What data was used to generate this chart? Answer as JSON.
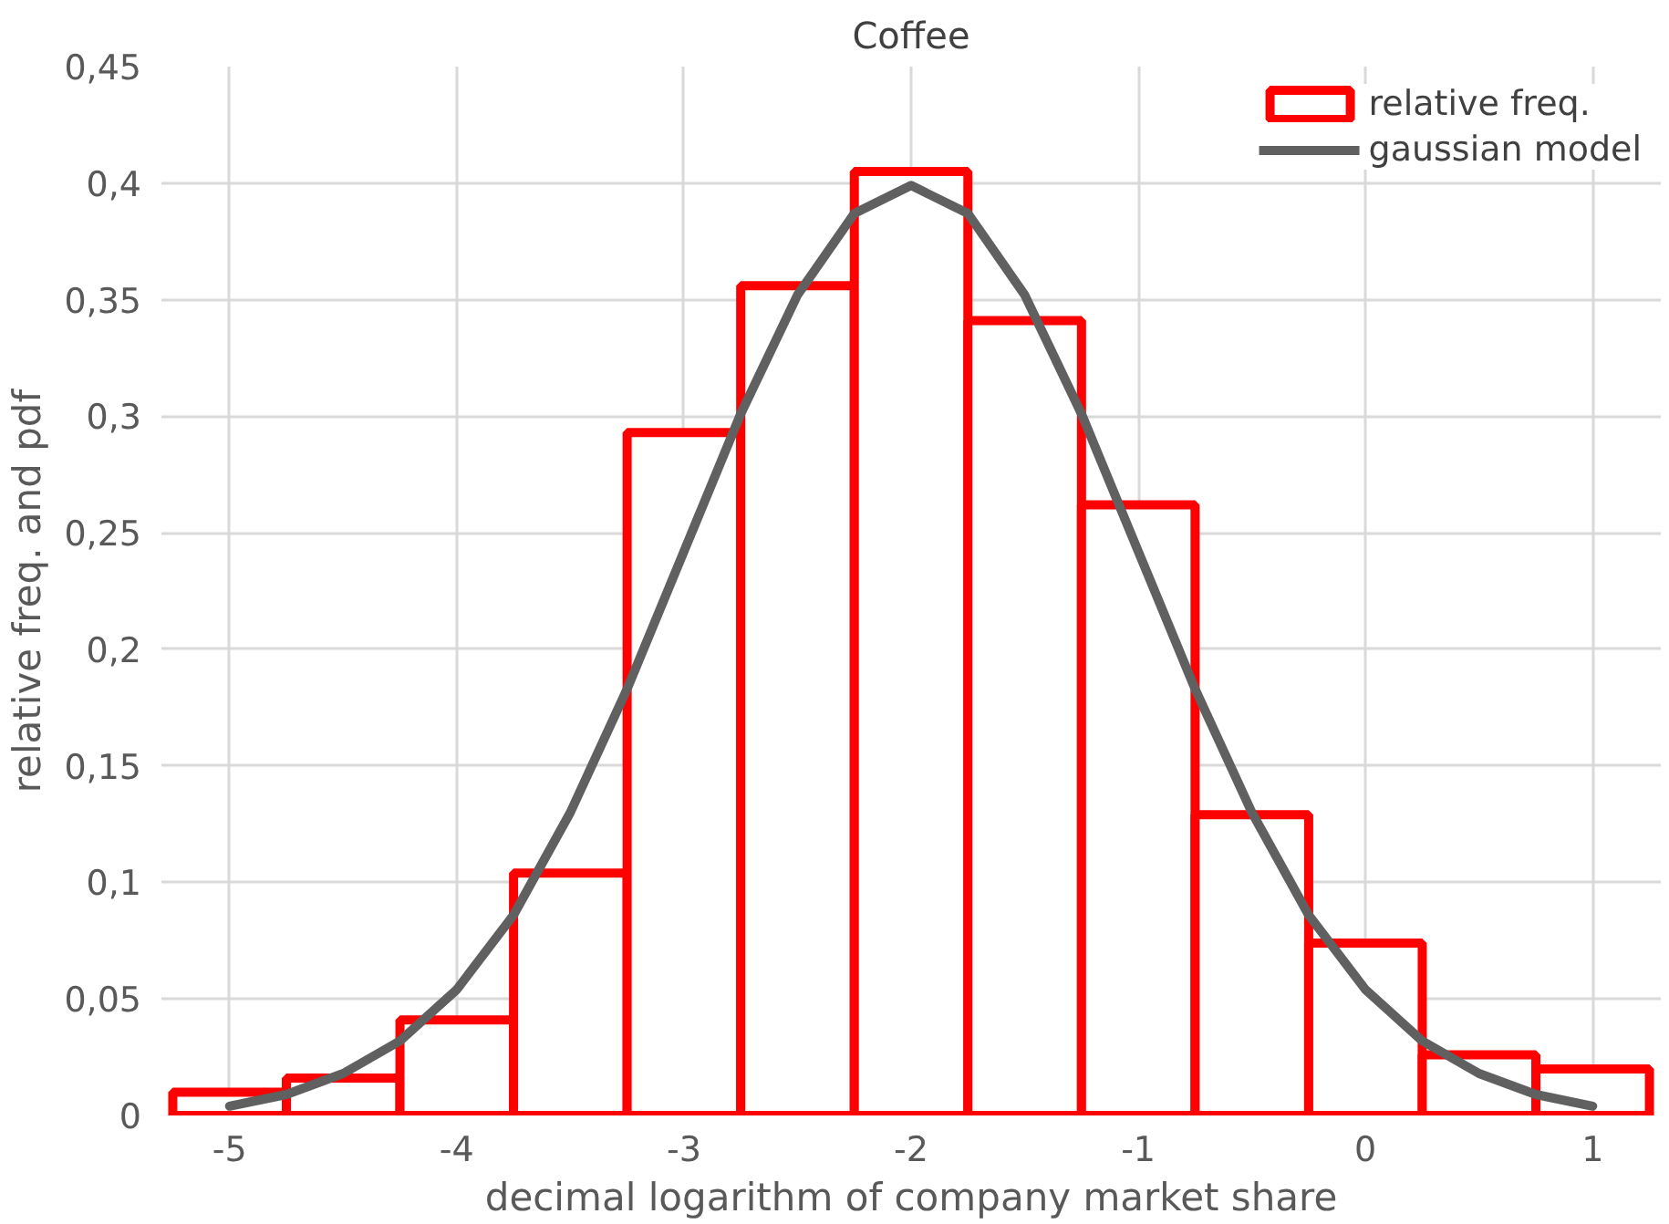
{
  "chart_data": {
    "type": "histogram",
    "title": "Coffee",
    "xlabel": "decimal logarithm of company market share",
    "ylabel": "relative freq. and pdf",
    "bins": [
      -5.25,
      -4.75,
      -4.25,
      -3.75,
      -3.25,
      -2.75,
      -2.25,
      -1.75,
      -1.25,
      -0.75,
      -0.25,
      0.25,
      0.75,
      1.25
    ],
    "series": [
      {
        "name": "relative freq.",
        "color": "#ff0000",
        "values": [
          0.01,
          0.016,
          0.041,
          0.104,
          0.293,
          0.356,
          0.405,
          0.341,
          0.262,
          0.129,
          0.074,
          0.026,
          0.02
        ]
      },
      {
        "name": "gaussian model",
        "type": "line",
        "color": "#606060",
        "x": [
          -5,
          -4.75,
          -4.5,
          -4.25,
          -4,
          -3.75,
          -3.5,
          -3.25,
          -3,
          -2.75,
          -2.5,
          -2.25,
          -2,
          -1.75,
          -1.5,
          -1.25,
          -1,
          -0.75,
          -0.5,
          -0.25,
          0,
          0.25,
          0.5,
          0.75,
          1
        ],
        "values": [
          0.004,
          0.009,
          0.018,
          0.032,
          0.054,
          0.086,
          0.13,
          0.183,
          0.242,
          0.301,
          0.352,
          0.387,
          0.399,
          0.387,
          0.352,
          0.301,
          0.242,
          0.183,
          0.13,
          0.086,
          0.054,
          0.032,
          0.018,
          0.009,
          0.004
        ]
      }
    ],
    "xlim": [
      -5.3,
      1.3
    ],
    "ylim": [
      0,
      0.45
    ],
    "xticks": [
      -5,
      -4,
      -3,
      -2,
      -1,
      0,
      1
    ],
    "yticks": [
      0,
      {
        "value": 0.05,
        "label": "0,05"
      },
      {
        "value": 0.1,
        "label": "0,1"
      },
      {
        "value": 0.15,
        "label": "0,15"
      },
      {
        "value": 0.2,
        "label": "0,2"
      },
      {
        "value": 0.25,
        "label": "0,25"
      },
      {
        "value": 0.3,
        "label": "0,3"
      },
      {
        "value": 0.35,
        "label": "0,35"
      },
      {
        "value": 0.4,
        "label": "0,4"
      },
      {
        "value": 0.45,
        "label": "0,45"
      }
    ],
    "grid": true,
    "legend": "top right",
    "marker": "none",
    "line_style": "solid"
  }
}
